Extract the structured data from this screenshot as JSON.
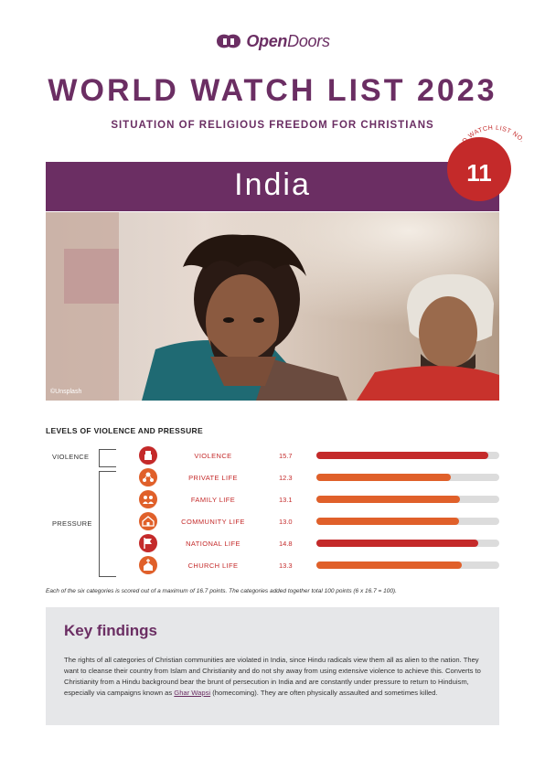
{
  "header": {
    "logo_open": "Open",
    "logo_doors": "Doors",
    "title": "WORLD WATCH LIST 2023",
    "subtitle": "SITUATION OF RELIGIOUS FREEDOM FOR CHRISTIANS"
  },
  "country": {
    "name": "India",
    "rank_label": "WORLD WATCH LIST NO.",
    "rank": "11"
  },
  "photo": {
    "credit": "©Unsplash"
  },
  "levels": {
    "heading": "LEVELS OF VIOLENCE AND PRESSURE",
    "group_violence": "VIOLENCE",
    "group_pressure": "PRESSURE",
    "max_score": 16.7,
    "rows": [
      {
        "label": "VIOLENCE",
        "score": "15.7",
        "value": 15.7,
        "icon": "fist-icon",
        "color": "#c42a2a"
      },
      {
        "label": "PRIVATE LIFE",
        "score": "12.3",
        "value": 12.3,
        "icon": "person-icon",
        "color": "#e0602a"
      },
      {
        "label": "FAMILY LIFE",
        "score": "13.1",
        "value": 13.1,
        "icon": "family-icon",
        "color": "#e0602a"
      },
      {
        "label": "COMMUNITY LIFE",
        "score": "13.0",
        "value": 13.0,
        "icon": "community-icon",
        "color": "#e0602a"
      },
      {
        "label": "NATIONAL LIFE",
        "score": "14.8",
        "value": 14.8,
        "icon": "flag-icon",
        "color": "#c42a2a"
      },
      {
        "label": "CHURCH LIFE",
        "score": "13.3",
        "value": 13.3,
        "icon": "church-icon",
        "color": "#e0602a"
      }
    ],
    "note": "Each of the six categories is scored out of a maximum of 16.7 points. The categories added together total 100 points (6 x 16.7 = 100)."
  },
  "key_findings": {
    "title": "Key findings",
    "text_before": "The rights of all categories of Christian communities are violated in India, since Hindu radicals view them all as alien to the nation. They want to cleanse their country from Islam and Christianity and do not shy away from using extensive violence to achieve this. Converts to Christianity from a Hindu background bear the brunt of persecution in India and are constantly under pressure to return to Hinduism, especially via campaigns known as ",
    "link": "Ghar Wapsi",
    "text_after": " (homecoming). They are often physically assaulted and sometimes killed."
  },
  "colors": {
    "brand_purple": "#6b2e63",
    "red": "#c42a2a",
    "orange": "#e0602a",
    "track": "#dcdcdc",
    "box": "#e6e7e9"
  }
}
